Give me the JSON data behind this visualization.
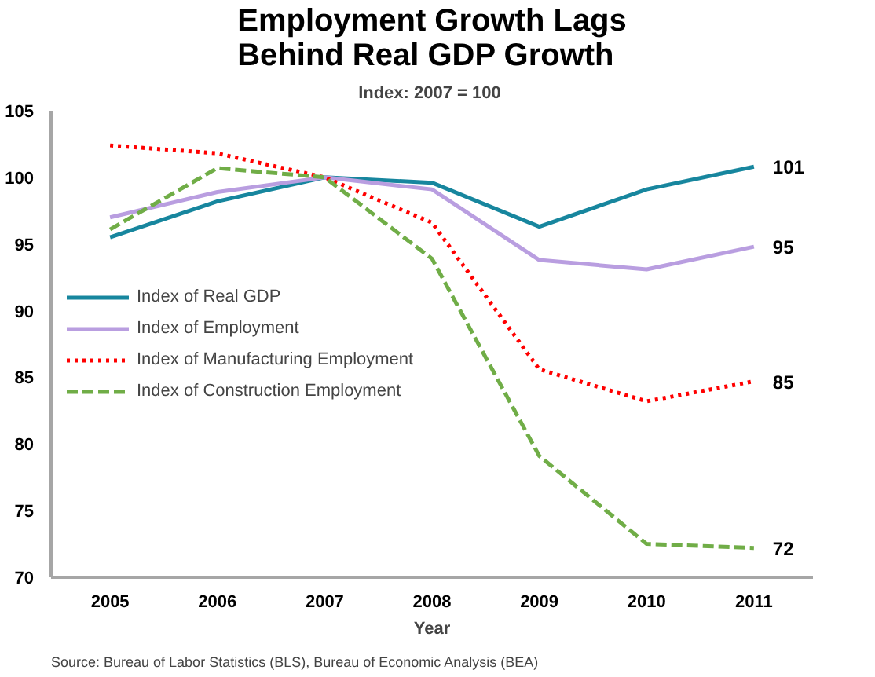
{
  "chart_data": {
    "type": "line",
    "title": "Employment Growth Lags Behind Real GDP Growth",
    "subtitle": "Index:  2007 = 100",
    "xlabel": "Year",
    "categories": [
      "2005",
      "2006",
      "2007",
      "2008",
      "2009",
      "2010",
      "2011"
    ],
    "series": [
      {
        "name": "Index of Real GDP",
        "color": "#17869e",
        "line_style": "solid",
        "values": [
          95.5,
          98.2,
          100,
          99.6,
          96.3,
          99.1,
          100.8
        ],
        "value_labels": [
          null,
          null,
          null,
          null,
          null,
          null,
          "101"
        ]
      },
      {
        "name": "Index of Employment",
        "color": "#b99ee0",
        "line_style": "solid",
        "values": [
          97.0,
          98.9,
          100,
          99.1,
          93.8,
          93.1,
          94.8
        ],
        "value_labels": [
          null,
          null,
          null,
          null,
          null,
          null,
          "95"
        ]
      },
      {
        "name": "Index of Manufacturing Employment",
        "color": "#ff0000",
        "line_style": "dotted",
        "values": [
          102.4,
          101.8,
          100,
          96.6,
          85.6,
          83.2,
          84.7
        ],
        "value_labels": [
          null,
          null,
          null,
          null,
          null,
          null,
          "85"
        ]
      },
      {
        "name": "Index of Construction Employment",
        "color": "#70ad47",
        "line_style": "dashed",
        "values": [
          96.1,
          100.7,
          100,
          93.9,
          79.1,
          72.5,
          72.2
        ],
        "value_labels": [
          null,
          null,
          null,
          null,
          null,
          null,
          "72"
        ]
      }
    ],
    "ylim": [
      70,
      105
    ],
    "yticks": [
      70,
      75,
      80,
      85,
      90,
      95,
      100,
      105
    ],
    "grid": false,
    "legend": "left",
    "marker": "none",
    "annotations": [
      "Source:  Bureau of Labor Statistics (BLS), Bureau of Economic Analysis (BEA)"
    ]
  }
}
